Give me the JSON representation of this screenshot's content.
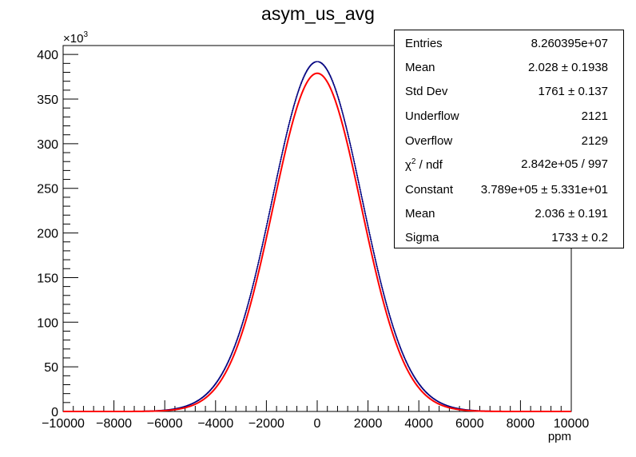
{
  "title": "asym_us_avg",
  "chart_data": {
    "type": "line",
    "title": "asym_us_avg",
    "xlabel": "ppm",
    "ylabel": "",
    "xlim": [
      -10000,
      10000
    ],
    "ylim": [
      0,
      410000
    ],
    "y_multiplier_label": "×10",
    "y_multiplier_exp": "3",
    "x_ticks": [
      -10000,
      -8000,
      -6000,
      -4000,
      -2000,
      0,
      2000,
      4000,
      6000,
      8000,
      10000
    ],
    "x_tick_labels": [
      "−10000",
      "−8000",
      "−6000",
      "−4000",
      "−2000",
      "0",
      "2000",
      "4000",
      "6000",
      "8000",
      "10000"
    ],
    "y_ticks": [
      0,
      50,
      100,
      150,
      200,
      250,
      300,
      350,
      400
    ],
    "y_tick_labels": [
      "0",
      "50",
      "100",
      "150",
      "200",
      "250",
      "300",
      "350",
      "400"
    ],
    "series": [
      {
        "color": "#00007f",
        "style": "histogram",
        "mean": 2.028,
        "std_dev": 1761,
        "peak": 392000,
        "entries": 82603950
      },
      {
        "color": "#ff0000",
        "style": "gaussian fit",
        "constant": 378900,
        "mean": 2.036,
        "sigma": 1733
      }
    ],
    "grid": false,
    "legend": "stats box top-right"
  },
  "stats": [
    {
      "name": "Entries",
      "value": "8.260395e+07"
    },
    {
      "name": "Mean",
      "value": "2.028  ± 0.1938"
    },
    {
      "name": "Std Dev",
      "value": "1761 ±  0.137"
    },
    {
      "name": "Underflow",
      "value": "2121"
    },
    {
      "name": "Overflow",
      "value": "2129"
    },
    {
      "name_prefix": "χ",
      "name_sup": "2",
      "name": " / ndf",
      "value": "2.842e+05 / 997"
    },
    {
      "name": "Constant",
      "value": "3.789e+05  ± 5.331e+01"
    },
    {
      "name": "Mean",
      "value": "2.036  ± 0.191"
    },
    {
      "name": "Sigma",
      "value": "1733  ± 0.2"
    }
  ]
}
